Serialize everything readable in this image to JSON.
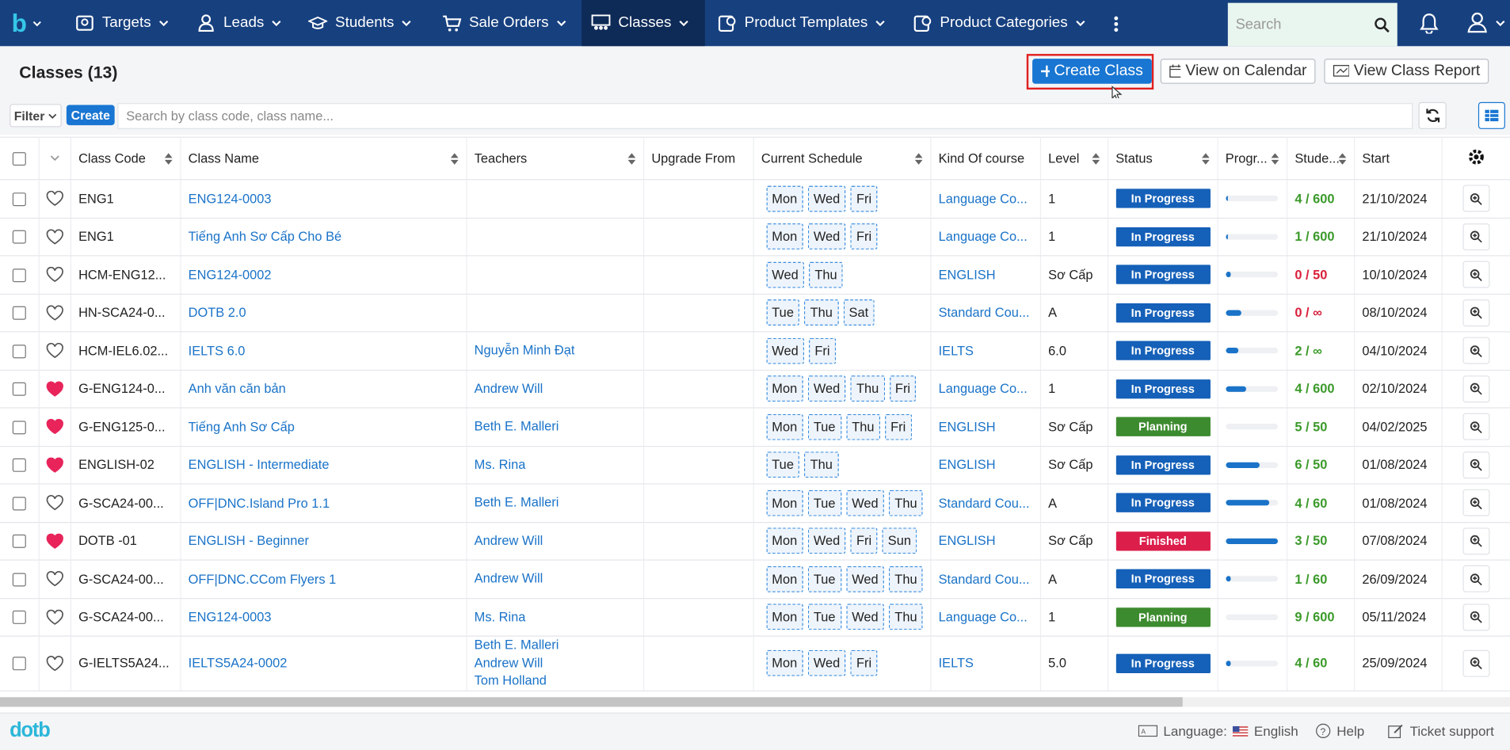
{
  "nav": {
    "logo": "b",
    "items": [
      "Targets",
      "Leads",
      "Students",
      "Sale Orders",
      "Classes",
      "Product Templates",
      "Product Categories"
    ],
    "active_index": 4,
    "search_placeholder": "Search"
  },
  "header": {
    "title": "Classes (13)",
    "buttons": [
      "Create Class",
      "View on Calendar",
      "View Class Report"
    ]
  },
  "toolbar": {
    "filter": "Filter",
    "create": "Create",
    "search_placeholder": "Search by class code, class name..."
  },
  "table": {
    "columns": [
      "Class Code",
      "Class Name",
      "Teachers",
      "Upgrade From",
      "Current Schedule",
      "Kind Of course",
      "Level",
      "Status",
      "Progr...",
      "Stude...",
      "Start"
    ],
    "rows": [
      {
        "favorite": false,
        "code": "ENG1",
        "name": "ENG124-0003",
        "teachers": [],
        "schedule": [
          "Mon",
          "Wed",
          "Fri"
        ],
        "kind": "Language Co...",
        "level": "1",
        "status": "In Progress",
        "status_color": "#1560b8",
        "progress": 5,
        "students": "4 / 600",
        "students_color": "#3b9a2a",
        "start": "21/10/2024"
      },
      {
        "favorite": false,
        "code": "ENG1",
        "name": "Tiếng Anh Sơ Cấp Cho Bé",
        "teachers": [],
        "schedule": [
          "Mon",
          "Wed",
          "Fri"
        ],
        "kind": "Language Co...",
        "level": "1",
        "status": "In Progress",
        "status_color": "#1560b8",
        "progress": 4,
        "students": "1 / 600",
        "students_color": "#3b9a2a",
        "start": "21/10/2024"
      },
      {
        "favorite": false,
        "code": "HCM-ENG12...",
        "name": "ENG124-0002",
        "teachers": [],
        "schedule": [
          "Wed",
          "Thu"
        ],
        "kind": "ENGLISH",
        "level": "Sơ Cấp",
        "status": "In Progress",
        "status_color": "#1560b8",
        "progress": 10,
        "students": "0 / 50",
        "students_color": "#d9213d",
        "start": "10/10/2024"
      },
      {
        "favorite": false,
        "code": "HN-SCA24-0...",
        "name": "DOTB 2.0",
        "teachers": [],
        "schedule": [
          "Tue",
          "Thu",
          "Sat"
        ],
        "kind": "Standard Cou...",
        "level": "A",
        "status": "In Progress",
        "status_color": "#1560b8",
        "progress": 30,
        "students": "0 / ∞",
        "students_color": "#d9213d",
        "start": "08/10/2024"
      },
      {
        "favorite": false,
        "code": "HCM-IEL6.02...",
        "name": "IELTS 6.0",
        "teachers": [
          "Nguyễn Minh Đạt"
        ],
        "schedule": [
          "Wed",
          "Fri"
        ],
        "kind": "IELTS",
        "level": "6.0",
        "status": "In Progress",
        "status_color": "#1560b8",
        "progress": 25,
        "students": "2 / ∞",
        "students_color": "#3b9a2a",
        "start": "04/10/2024"
      },
      {
        "favorite": true,
        "code": "G-ENG124-0...",
        "name": "Anh văn căn bản",
        "teachers": [
          "Andrew Will"
        ],
        "schedule": [
          "Mon",
          "Wed",
          "Thu",
          "Fri"
        ],
        "kind": "Language Co...",
        "level": "1",
        "status": "In Progress",
        "status_color": "#1560b8",
        "progress": 40,
        "students": "4 / 600",
        "students_color": "#3b9a2a",
        "start": "02/10/2024"
      },
      {
        "favorite": true,
        "code": "G-ENG125-0...",
        "name": "Tiếng Anh Sơ Cấp",
        "teachers": [
          "Beth E. Malleri"
        ],
        "schedule": [
          "Mon",
          "Tue",
          "Thu",
          "Fri"
        ],
        "kind": "ENGLISH",
        "level": "Sơ Cấp",
        "status": "Planning",
        "status_color": "#3d8b2f",
        "progress": 0,
        "students": "5 / 50",
        "students_color": "#3b9a2a",
        "start": "04/02/2025"
      },
      {
        "favorite": true,
        "code": "ENGLISH-02",
        "name": "ENGLISH - Intermediate",
        "teachers": [
          "Ms. Rina"
        ],
        "schedule": [
          "Tue",
          "Thu"
        ],
        "kind": "ENGLISH",
        "level": "Sơ Cấp",
        "status": "In Progress",
        "status_color": "#1560b8",
        "progress": 65,
        "students": "6 / 50",
        "students_color": "#3b9a2a",
        "start": "01/08/2024"
      },
      {
        "favorite": false,
        "code": "G-SCA24-00...",
        "name": "OFF|DNC.Island Pro 1.1",
        "teachers": [
          "Beth E. Malleri"
        ],
        "schedule": [
          "Mon",
          "Tue",
          "Wed",
          "Thu"
        ],
        "kind": "Standard Cou...",
        "level": "A",
        "status": "In Progress",
        "status_color": "#1560b8",
        "progress": 85,
        "students": "4 / 60",
        "students_color": "#3b9a2a",
        "start": "01/08/2024"
      },
      {
        "favorite": true,
        "code": "DOTB -01",
        "name": "ENGLISH - Beginner",
        "teachers": [
          "Andrew Will"
        ],
        "schedule": [
          "Mon",
          "Wed",
          "Fri",
          "Sun"
        ],
        "kind": "ENGLISH",
        "level": "Sơ Cấp",
        "status": "Finished",
        "status_color": "#dc1e4b",
        "progress": 100,
        "students": "3 / 50",
        "students_color": "#3b9a2a",
        "start": "07/08/2024"
      },
      {
        "favorite": false,
        "code": "G-SCA24-00...",
        "name": "OFF|DNC.CCom Flyers 1",
        "teachers": [
          "Andrew Will"
        ],
        "schedule": [
          "Mon",
          "Tue",
          "Wed",
          "Thu"
        ],
        "kind": "Standard Cou...",
        "level": "A",
        "status": "In Progress",
        "status_color": "#1560b8",
        "progress": 10,
        "students": "1 / 60",
        "students_color": "#3b9a2a",
        "start": "26/09/2024"
      },
      {
        "favorite": false,
        "code": "G-SCA24-00...",
        "name": "ENG124-0003",
        "teachers": [
          "Ms. Rina"
        ],
        "schedule": [
          "Mon",
          "Tue",
          "Wed",
          "Thu"
        ],
        "kind": "Language Co...",
        "level": "1",
        "status": "Planning",
        "status_color": "#3d8b2f",
        "progress": 0,
        "students": "9 / 600",
        "students_color": "#3b9a2a",
        "start": "05/11/2024"
      },
      {
        "favorite": false,
        "code": "G-IELTS5A24...",
        "name": "IELTS5A24-0002",
        "teachers": [
          "Beth E. Malleri",
          "Andrew Will",
          "Tom Holland"
        ],
        "schedule": [
          "Mon",
          "Wed",
          "Fri"
        ],
        "kind": "IELTS",
        "level": "5.0",
        "status": "In Progress",
        "status_color": "#1560b8",
        "progress": 10,
        "students": "4 / 60",
        "students_color": "#3b9a2a",
        "start": "25/09/2024"
      }
    ]
  },
  "footer": {
    "logo": "dotb",
    "language_label": "Language:",
    "language": "English",
    "help": "Help",
    "ticket": "Ticket support"
  }
}
